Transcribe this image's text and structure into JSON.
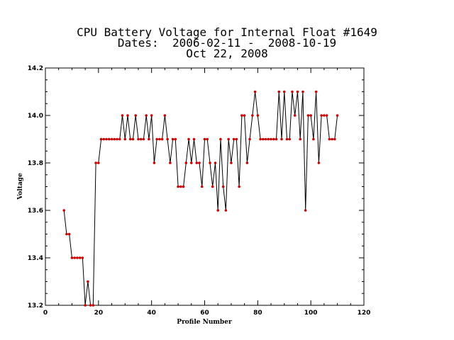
{
  "chart_data": {
    "type": "line",
    "title": "CPU Battery Voltage for Internal Float #1649",
    "subtitle": "Dates:  2006-02-11 -  2008-10-19",
    "date_line": "Oct 22, 2008",
    "xlabel": "Profile Number",
    "ylabel": "Voltage",
    "xlim": [
      0,
      120
    ],
    "ylim": [
      13.2,
      14.2
    ],
    "x_ticks": [
      "0",
      "20",
      "40",
      "60",
      "80",
      "100",
      "120"
    ],
    "y_ticks": [
      "13.2",
      "13.4",
      "13.6",
      "13.8",
      "14.0",
      "14.2"
    ],
    "grid": false,
    "line_color": "#000000",
    "marker_color": "#cc0000",
    "x": [
      7,
      8,
      9,
      10,
      11,
      12,
      13,
      14,
      15,
      16,
      17,
      18,
      19,
      20,
      21,
      22,
      23,
      24,
      25,
      26,
      27,
      28,
      29,
      30,
      31,
      32,
      33,
      34,
      35,
      36,
      37,
      38,
      39,
      40,
      41,
      42,
      43,
      44,
      45,
      46,
      47,
      48,
      49,
      50,
      51,
      52,
      53,
      54,
      55,
      56,
      57,
      58,
      59,
      60,
      61,
      62,
      63,
      64,
      65,
      66,
      67,
      68,
      69,
      70,
      71,
      72,
      73,
      74,
      75,
      76,
      77,
      78,
      79,
      80,
      81,
      82,
      83,
      84,
      85,
      86,
      87,
      88,
      89,
      90,
      91,
      92,
      93,
      94,
      95,
      96,
      97,
      98,
      99,
      100,
      101,
      102,
      103,
      104,
      105,
      106,
      107,
      108,
      109,
      110
    ],
    "y": [
      13.6,
      13.5,
      13.5,
      13.4,
      13.4,
      13.4,
      13.4,
      13.4,
      13.2,
      13.3,
      13.2,
      13.2,
      13.8,
      13.8,
      13.9,
      13.9,
      13.9,
      13.9,
      13.9,
      13.9,
      13.9,
      13.9,
      14.0,
      13.9,
      14.0,
      13.9,
      13.9,
      14.0,
      13.9,
      13.9,
      13.9,
      14.0,
      13.9,
      14.0,
      13.8,
      13.9,
      13.9,
      13.9,
      14.0,
      13.9,
      13.8,
      13.9,
      13.9,
      13.7,
      13.7,
      13.7,
      13.8,
      13.9,
      13.8,
      13.9,
      13.8,
      13.8,
      13.7,
      13.9,
      13.9,
      13.8,
      13.7,
      13.8,
      13.6,
      13.9,
      13.7,
      13.6,
      13.9,
      13.8,
      13.9,
      13.9,
      13.7,
      14.0,
      14.0,
      13.8,
      13.9,
      14.0,
      14.1,
      14.0,
      13.9,
      13.9,
      13.9,
      13.9,
      13.9,
      13.9,
      13.9,
      14.1,
      13.9,
      14.1,
      13.9,
      13.9,
      14.1,
      14.0,
      14.1,
      13.9,
      14.1,
      13.6,
      14.0,
      14.0,
      13.9,
      14.1,
      13.8,
      14.0,
      14.0,
      14.0,
      13.9,
      13.9,
      13.9,
      14.0
    ]
  }
}
